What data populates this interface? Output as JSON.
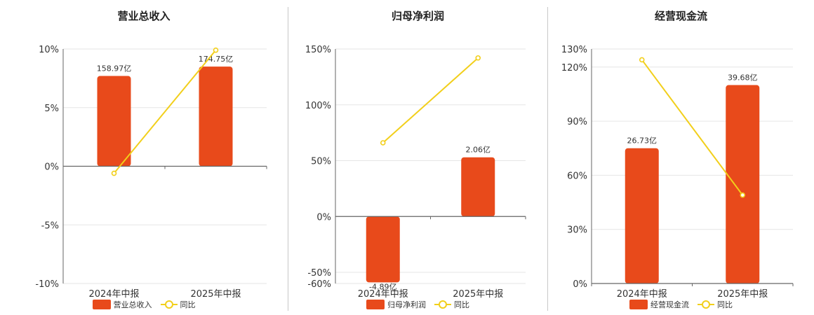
{
  "colors": {
    "bar": "#e84a1b",
    "line": "#f2cf1b",
    "grid": "#e6e6e6",
    "axis": "#666666"
  },
  "chart_data": [
    {
      "type": "bar",
      "title": "营业总收入",
      "categories": [
        "2024年中报",
        "2025年中报"
      ],
      "series": [
        {
          "name": "营业总收入",
          "kind": "bar",
          "values": [
            7.7,
            8.5
          ],
          "labels": [
            "158.97亿",
            "174.75亿"
          ]
        },
        {
          "name": "同比",
          "kind": "line",
          "values": [
            -0.6,
            9.9
          ]
        }
      ],
      "ylim": [
        -10,
        10
      ],
      "yticks": [
        10,
        5,
        0,
        -5,
        -10
      ],
      "ytick_labels": [
        "10%",
        "5%",
        "0%",
        "-5%",
        "-10%"
      ],
      "grid": true,
      "legend_position": "bottom"
    },
    {
      "type": "bar",
      "title": "归母净利润",
      "categories": [
        "2024年中报",
        "2025年中报"
      ],
      "series": [
        {
          "name": "归母净利润",
          "kind": "bar",
          "values": [
            -59,
            53
          ],
          "labels": [
            "-4.89亿",
            "2.06亿"
          ]
        },
        {
          "name": "同比",
          "kind": "line",
          "values": [
            66,
            142
          ]
        }
      ],
      "ylim": [
        -60,
        150
      ],
      "yticks": [
        150,
        100,
        50,
        0,
        -50,
        -60
      ],
      "ytick_labels": [
        "150%",
        "100%",
        "50%",
        "0%",
        "-50%",
        "-60%"
      ],
      "grid": true,
      "legend_position": "bottom"
    },
    {
      "type": "bar",
      "title": "经营现金流",
      "categories": [
        "2024年中报",
        "2025年中报"
      ],
      "series": [
        {
          "name": "经营现金流",
          "kind": "bar",
          "values": [
            75,
            110
          ],
          "labels": [
            "26.73亿",
            "39.68亿"
          ]
        },
        {
          "name": "同比",
          "kind": "line",
          "values": [
            124,
            49
          ]
        }
      ],
      "ylim": [
        0,
        130
      ],
      "yticks": [
        130,
        120,
        90,
        60,
        30,
        0
      ],
      "ytick_labels": [
        "130%",
        "120%",
        "90%",
        "60%",
        "30%",
        "0%"
      ],
      "grid": true,
      "legend_position": "bottom"
    }
  ]
}
